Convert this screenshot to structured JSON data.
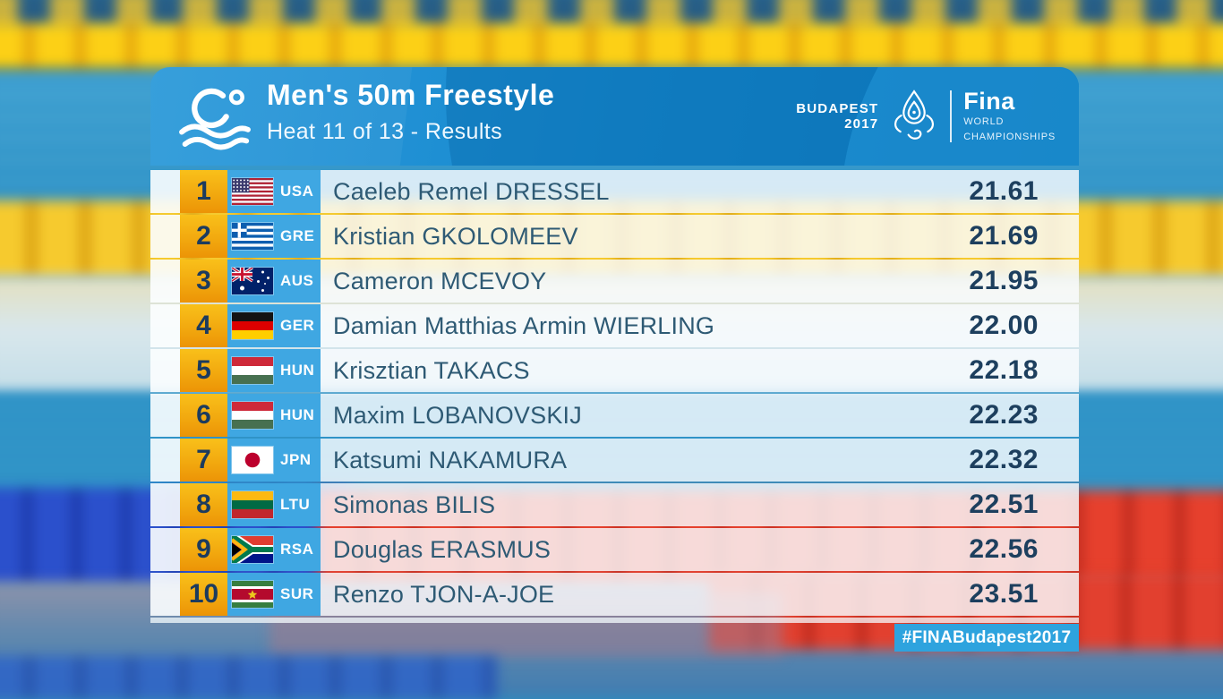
{
  "header": {
    "title": "Men's 50m Freestyle",
    "subtitle": "Heat 11 of 13 - Results",
    "budapest_city": "BUDAPEST",
    "budapest_year": "2017",
    "fina_wordmark": "Fina",
    "fina_line1": "WORLD",
    "fina_line2": "CHAMPIONSHIPS"
  },
  "table": {
    "columns": [
      "rank",
      "country",
      "name",
      "time"
    ]
  },
  "results": [
    {
      "rank": "1",
      "country": "USA",
      "name": "Caeleb Remel DRESSEL",
      "time": "21.61"
    },
    {
      "rank": "2",
      "country": "GRE",
      "name": "Kristian GKOLOMEEV",
      "time": "21.69"
    },
    {
      "rank": "3",
      "country": "AUS",
      "name": "Cameron MCEVOY",
      "time": "21.95"
    },
    {
      "rank": "4",
      "country": "GER",
      "name": "Damian Matthias Armin WIERLING",
      "time": "22.00"
    },
    {
      "rank": "5",
      "country": "HUN",
      "name": "Krisztian TAKACS",
      "time": "22.18"
    },
    {
      "rank": "6",
      "country": "HUN",
      "name": "Maxim LOBANOVSKIJ",
      "time": "22.23"
    },
    {
      "rank": "7",
      "country": "JPN",
      "name": "Katsumi NAKAMURA",
      "time": "22.32"
    },
    {
      "rank": "8",
      "country": "LTU",
      "name": "Simonas BILIS",
      "time": "22.51"
    },
    {
      "rank": "9",
      "country": "RSA",
      "name": "Douglas ERASMUS",
      "time": "22.56"
    },
    {
      "rank": "10",
      "country": "SUR",
      "name": "Renzo TJON-A-JOE",
      "time": "23.51"
    }
  ],
  "footer": {
    "hashtag": "#FINABudapest2017"
  },
  "icons": [
    "swimmer-icon",
    "budapest-2017-logo",
    "fina-logo"
  ],
  "colors": {
    "header_blue": "#1689cf",
    "rank_gradient_top": "#f9c01a",
    "rank_gradient_bottom": "#ec9406",
    "flag_cell_blue": "#3fa7e2",
    "name_text": "#2e5a74",
    "time_text": "#1d3f5e",
    "hashtag_bg": "#2ea3de",
    "pool_water": "#2f93c7",
    "lane_rope_yellow": "#fcd016",
    "lane_rope_red": "#e6402d",
    "lane_rope_blue": "#2b50cc"
  }
}
